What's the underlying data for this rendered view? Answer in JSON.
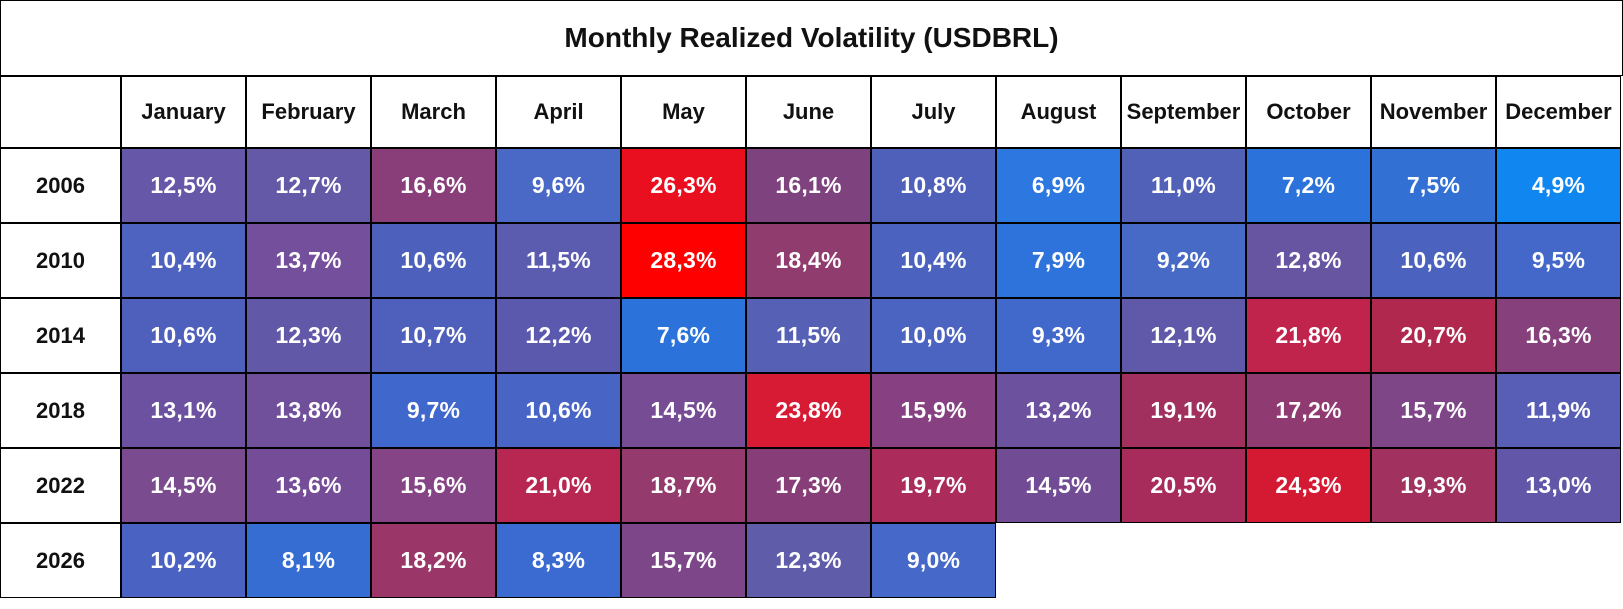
{
  "chart_data": {
    "type": "heatmap",
    "title": "Monthly Realized Volatility (USDBRL)",
    "columns": [
      "January",
      "February",
      "March",
      "April",
      "May",
      "June",
      "July",
      "August",
      "September",
      "October",
      "November",
      "December"
    ],
    "rows": [
      {
        "year": "2006",
        "values": [
          "12,5%",
          "12,7%",
          "16,6%",
          "9,6%",
          "26,3%",
          "16,1%",
          "10,8%",
          "6,9%",
          "11,0%",
          "7,2%",
          "7,5%",
          "4,9%"
        ],
        "colors": [
          "#6657A8",
          "#6459A7",
          "#8A3E79",
          "#4A68C5",
          "#E90F1F",
          "#7E437F",
          "#4F60BA",
          "#2C77E0",
          "#5161B8",
          "#2B72DA",
          "#3270D4",
          "#0F86F0"
        ]
      },
      {
        "year": "2010",
        "values": [
          "10,4%",
          "13,7%",
          "10,6%",
          "11,5%",
          "28,3%",
          "18,4%",
          "10,4%",
          "7,9%",
          "9,2%",
          "12,8%",
          "10,6%",
          "9,5%"
        ],
        "colors": [
          "#4E63BF",
          "#74509C",
          "#4D61BC",
          "#5B5BB0",
          "#FF0000",
          "#913C6E",
          "#4B63BF",
          "#2E73DB",
          "#476AC7",
          "#6855A1",
          "#4B63BF",
          "#4468CA"
        ]
      },
      {
        "year": "2014",
        "values": [
          "10,6%",
          "12,3%",
          "10,7%",
          "12,2%",
          "7,6%",
          "11,5%",
          "10,0%",
          "9,3%",
          "12,1%",
          "21,8%",
          "20,7%",
          "16,3%"
        ],
        "colors": [
          "#4E60BB",
          "#6158A8",
          "#4E60BC",
          "#5B59AD",
          "#2B73DA",
          "#5660B5",
          "#4B64C2",
          "#4168CB",
          "#6058A9",
          "#C0234B",
          "#B1284E",
          "#86407B"
        ]
      },
      {
        "year": "2018",
        "values": [
          "13,1%",
          "13,8%",
          "9,7%",
          "10,6%",
          "14,5%",
          "23,8%",
          "15,9%",
          "13,2%",
          "19,1%",
          "17,2%",
          "15,7%",
          "11,9%"
        ],
        "colors": [
          "#6C51A0",
          "#70509B",
          "#4067CB",
          "#4865C5",
          "#764C94",
          "#D81B34",
          "#874082",
          "#6B519E",
          "#A2305F",
          "#903A72",
          "#7E4687",
          "#585EB5"
        ]
      },
      {
        "year": "2022",
        "values": [
          "14,5%",
          "13,6%",
          "15,6%",
          "21,0%",
          "18,7%",
          "17,3%",
          "19,7%",
          "14,5%",
          "20,5%",
          "24,3%",
          "19,3%",
          "13,0%"
        ],
        "colors": [
          "#7A4B8F",
          "#744C97",
          "#854485",
          "#B72751",
          "#943A6C",
          "#873D78",
          "#AB2C5B",
          "#714C95",
          "#A72C5C",
          "#D41A32",
          "#A1325F",
          "#6156A8"
        ]
      },
      {
        "year": "2026",
        "values": [
          "10,2%",
          "8,1%",
          "18,2%",
          "8,3%",
          "15,7%",
          "12,3%",
          "9,0%"
        ],
        "colors": [
          "#4A63C2",
          "#356DD2",
          "#9A3768",
          "#3B6BD0",
          "#7D4689",
          "#5F5CAA",
          "#4668C8"
        ]
      }
    ]
  }
}
